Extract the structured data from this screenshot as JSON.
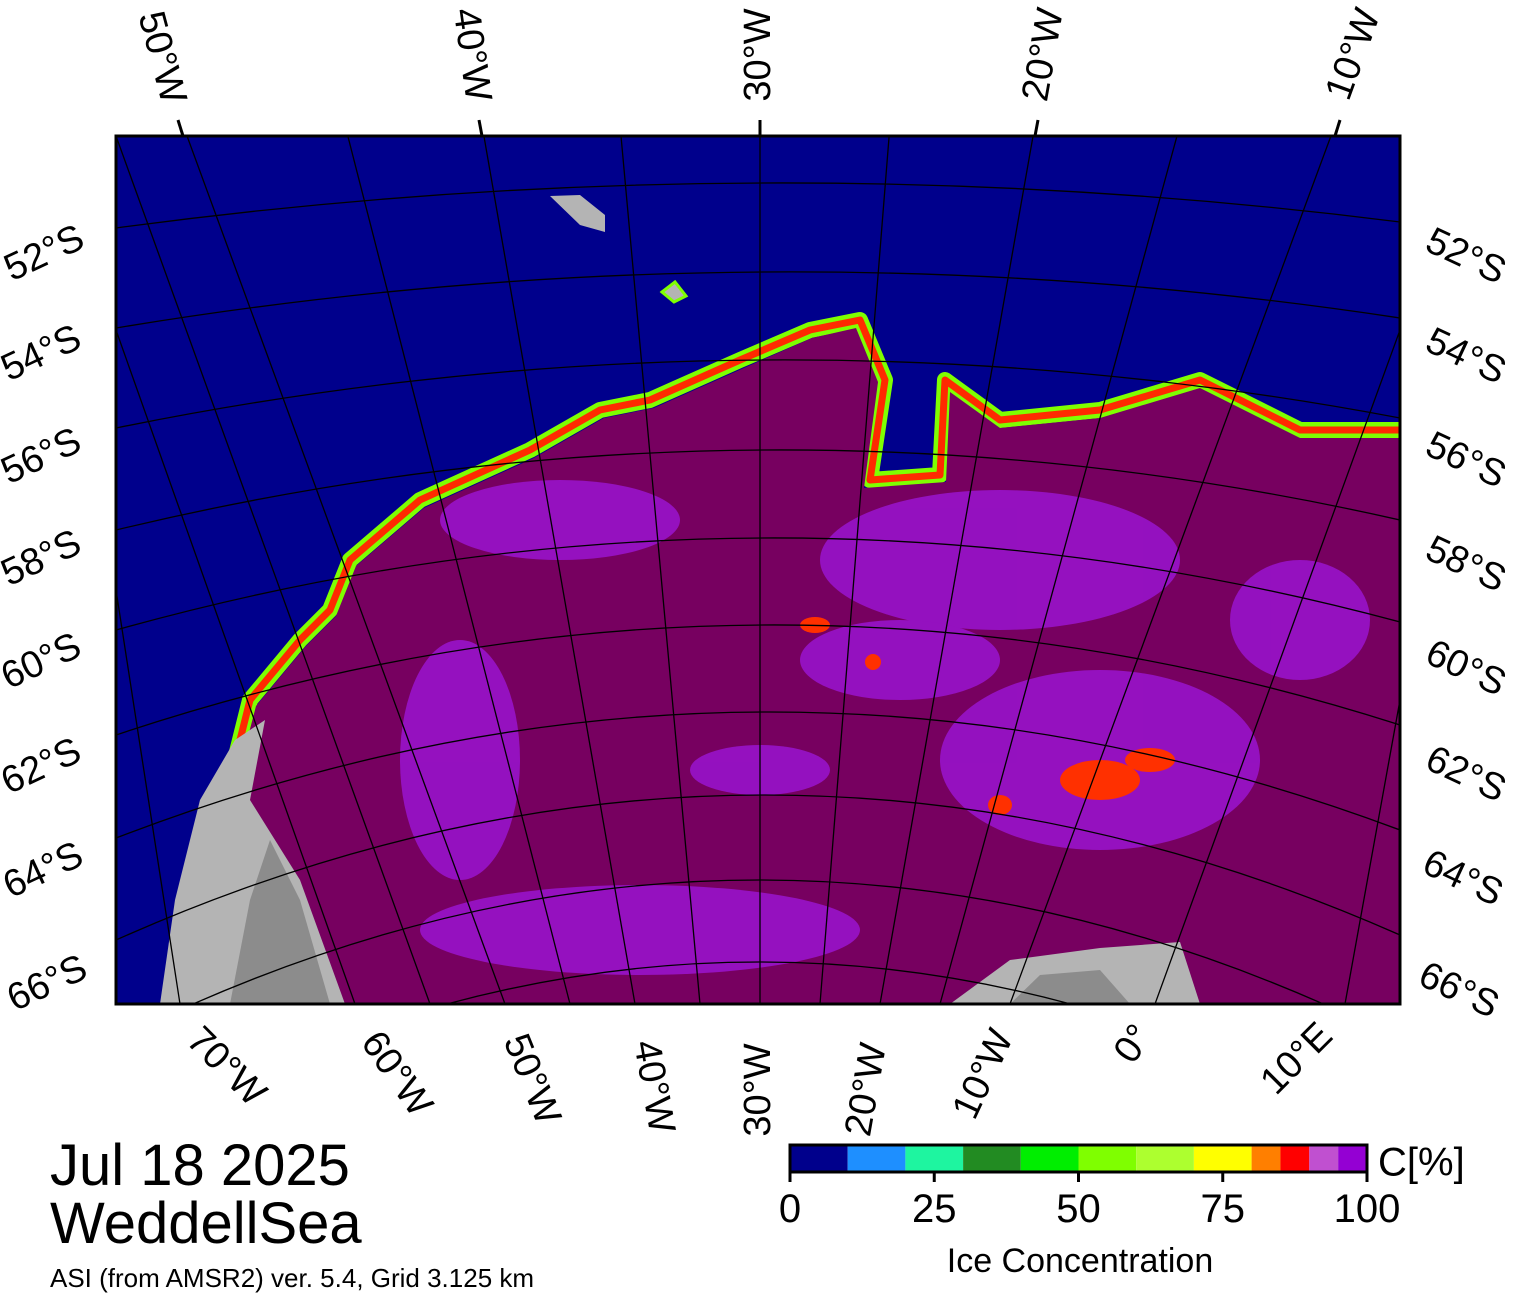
{
  "map": {
    "top_labels": [
      "50°W",
      "40°W",
      "30°W",
      "20°W",
      "10°W"
    ],
    "left_labels": [
      "52°S",
      "54°S",
      "56°S",
      "58°S",
      "60°S",
      "62°S",
      "64°S",
      "66°S"
    ],
    "right_labels": [
      "52°S",
      "54°S",
      "56°S",
      "58°S",
      "60°S",
      "62°S",
      "64°S",
      "66°S"
    ],
    "bottom_labels": [
      "70°W",
      "60°W",
      "50°W",
      "40°W",
      "30°W",
      "20°W",
      "10°W",
      "0°",
      "10°E"
    ]
  },
  "info": {
    "date": "Jul 18 2025",
    "region": "WeddellSea",
    "source": "ASI (from AMSR2) ver. 5.4,  Grid 3.125 km"
  },
  "colorbar": {
    "title": "Ice Concentration",
    "unit": "C[%]",
    "range": [
      0,
      100
    ],
    "ticks": [
      0,
      25,
      50,
      75,
      100
    ],
    "bins": [
      0,
      10,
      20,
      30,
      40,
      50,
      60,
      70,
      80,
      85,
      90,
      95,
      100
    ],
    "colors": [
      "#00008c",
      "#1e8fff",
      "#1ef5a0",
      "#228b22",
      "#00ee00",
      "#7fff00",
      "#adff2f",
      "#ffff00",
      "#ff7f00",
      "#ff0000",
      "#c050d0",
      "#9400d3"
    ]
  }
}
